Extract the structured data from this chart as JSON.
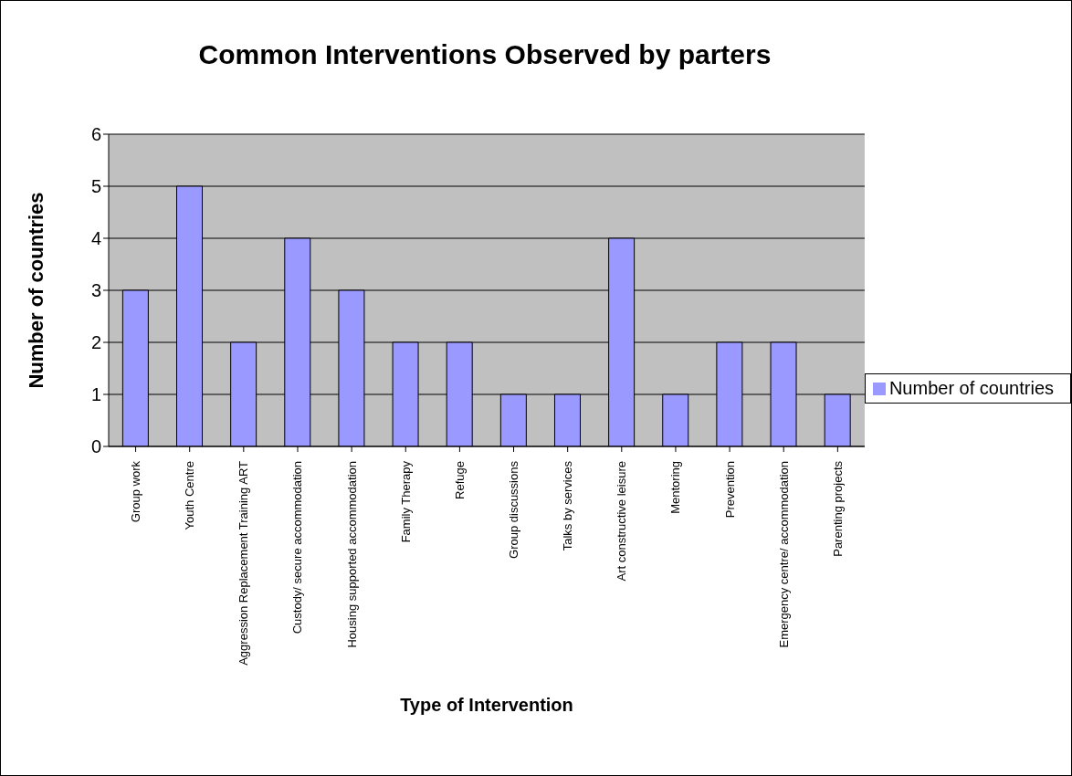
{
  "chart_data": {
    "type": "bar",
    "title": "Common Interventions Observed by parters",
    "xlabel": "Type of Intervention",
    "ylabel": "Number of countries",
    "categories": [
      "Group work",
      "Youth Centre",
      "Aggression Replacement Training ART",
      "Custody/ secure  accommodation",
      "Housing supported accommodation",
      "Family Therapy",
      "Refuge",
      "Group discussions",
      "Talks by services",
      "Art constructive leisure",
      "Mentoring",
      "Prevention",
      "Emergency centre/ accommodation",
      "Parenting projects"
    ],
    "series": [
      {
        "name": "Number of countries",
        "color": "#9999ff",
        "values": [
          3,
          5,
          2,
          4,
          3,
          2,
          2,
          1,
          1,
          4,
          1,
          2,
          2,
          1
        ]
      }
    ],
    "ylim": [
      0,
      6
    ],
    "yticks": [
      0,
      1,
      2,
      3,
      4,
      5,
      6
    ],
    "grid": "y",
    "legend": "right"
  }
}
